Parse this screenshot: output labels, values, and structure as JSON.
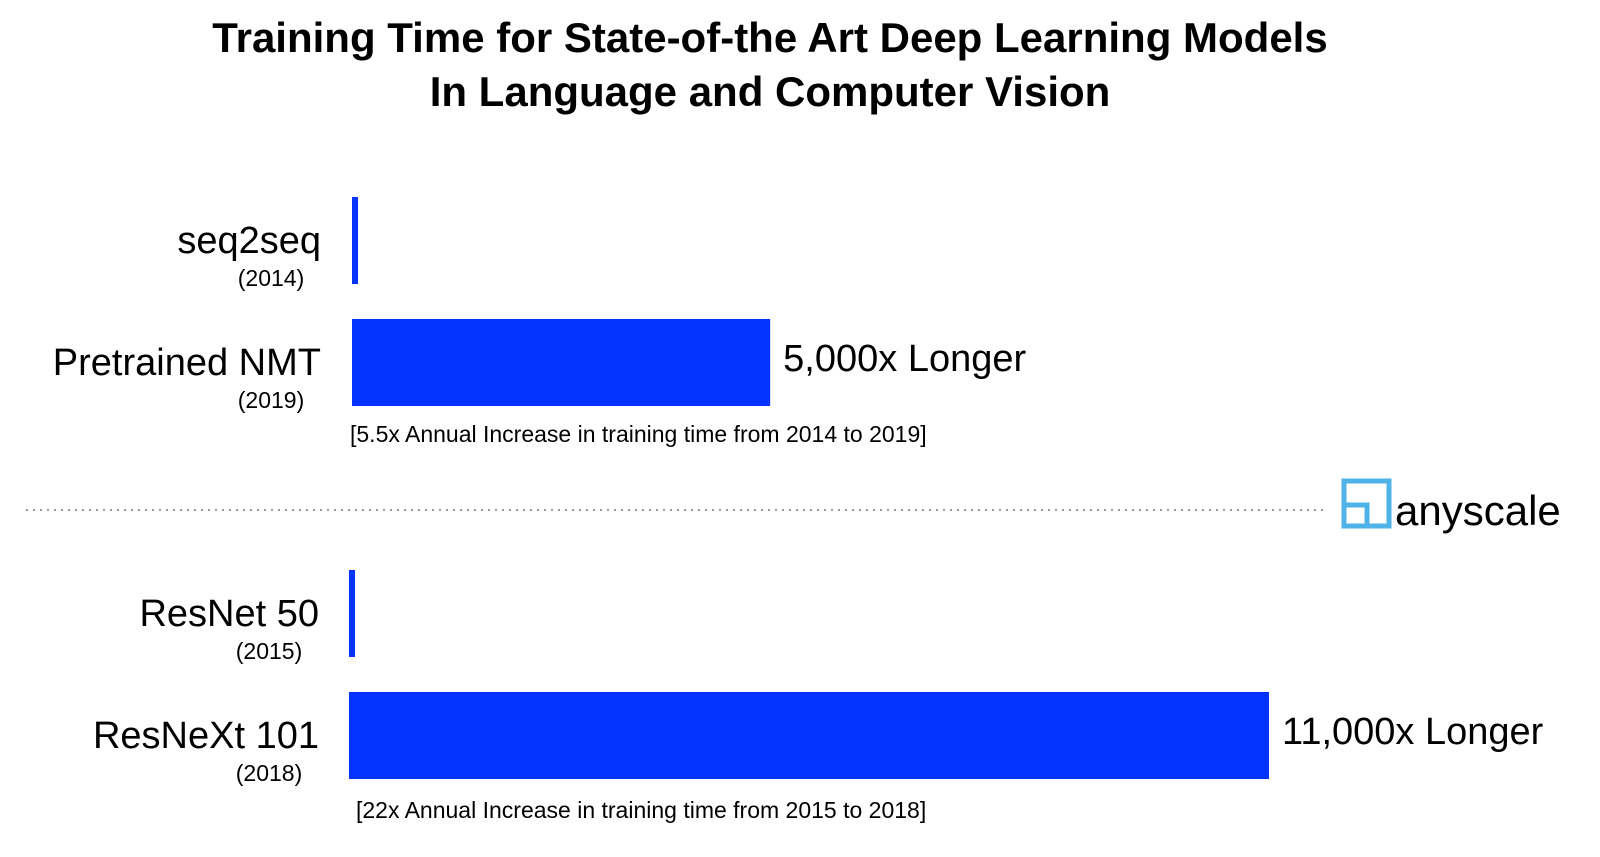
{
  "colors": {
    "bar": "#0433ff",
    "divider": "#999999",
    "logo_accent": "#4fb3e8",
    "text": "#000000"
  },
  "logo": {
    "text": "anyscale",
    "icon": "anyscale-logo-icon"
  },
  "chart_data": {
    "type": "bar",
    "orientation": "horizontal",
    "title_lines": [
      "Training Time for State-of-the Art Deep Learning Models",
      "In Language and Computer Vision"
    ],
    "groups": [
      {
        "name": "language",
        "categories": [
          "seq2seq",
          "Pretrained NMT"
        ],
        "years": [
          "(2014)",
          "(2019)"
        ],
        "values": [
          1,
          5000
        ],
        "value_labels": [
          "",
          "5,000x Longer"
        ],
        "note": "[5.5x Annual Increase in training time from 2014 to 2019]"
      },
      {
        "name": "vision",
        "categories": [
          "ResNet 50",
          "ResNeXt 101"
        ],
        "years": [
          "(2015)",
          "(2018)"
        ],
        "values": [
          1,
          11000
        ],
        "value_labels": [
          "",
          "11,000x Longer"
        ],
        "note": "[22x Annual Increase in training time from 2015 to 2018]"
      }
    ],
    "xlim": [
      0,
      11000
    ],
    "grid": false,
    "legend": false
  }
}
